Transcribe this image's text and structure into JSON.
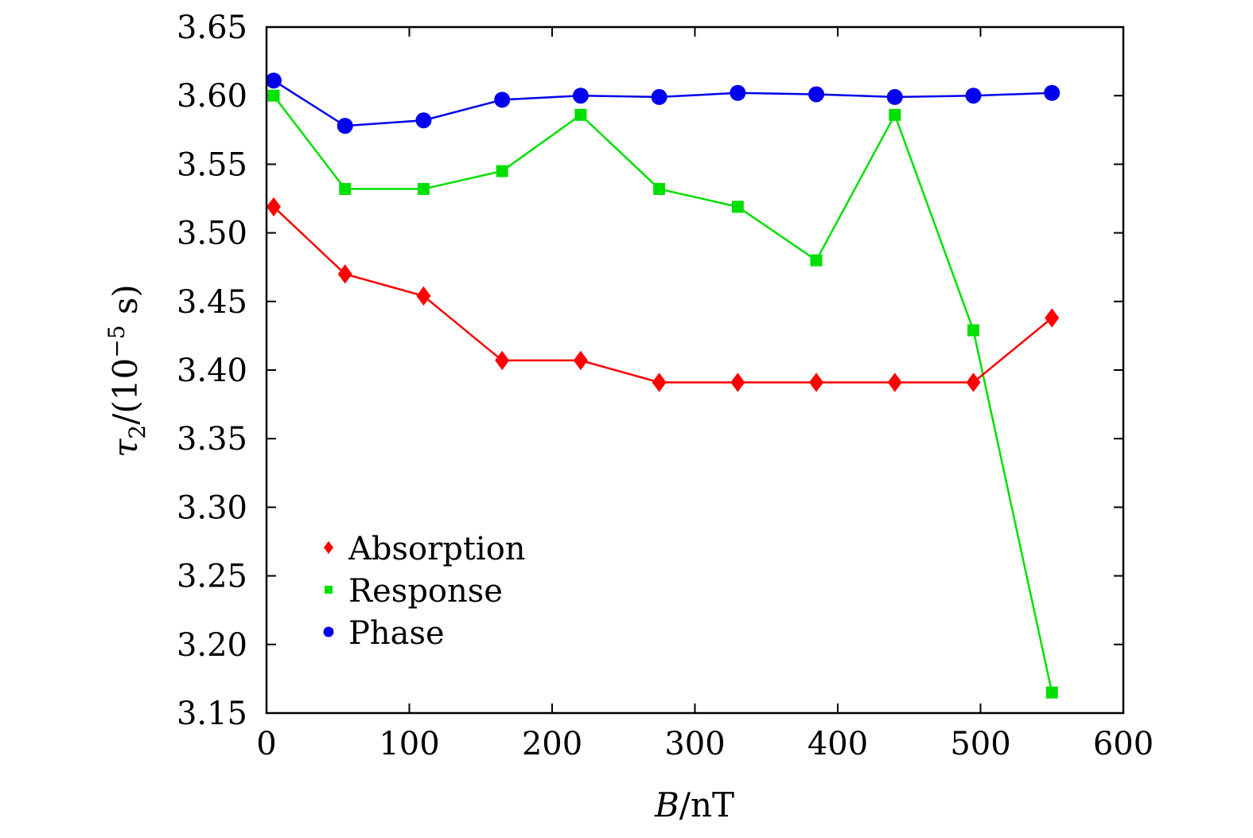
{
  "chart_data": {
    "type": "line",
    "title": "",
    "xlabel_var": "B",
    "xlabel_unit": "/nT",
    "ylabel_var": "τ",
    "ylabel_sub": "2",
    "ylabel_unit": "/(10",
    "ylabel_exp": "−5",
    "ylabel_tail": " s)",
    "xlim": [
      0,
      600
    ],
    "ylim": [
      3.15,
      3.65
    ],
    "xticks": [
      0,
      100,
      200,
      300,
      400,
      500,
      600
    ],
    "xtick_labels": [
      "0",
      "100",
      "200",
      "300",
      "400",
      "500",
      "600"
    ],
    "yticks": [
      3.15,
      3.2,
      3.25,
      3.3,
      3.35,
      3.4,
      3.45,
      3.5,
      3.55,
      3.6,
      3.65
    ],
    "ytick_labels": [
      "3.15",
      "3.20",
      "3.25",
      "3.30",
      "3.35",
      "3.40",
      "3.45",
      "3.50",
      "3.55",
      "3.60",
      "3.65"
    ],
    "legend_position": "lower-left",
    "x": [
      5,
      55,
      110,
      165,
      220,
      275,
      330,
      385,
      440,
      495,
      550
    ],
    "series": [
      {
        "name": "Absorption",
        "color": "#ff0000",
        "marker": "diamond",
        "values": [
          3.519,
          3.47,
          3.454,
          3.407,
          3.407,
          3.391,
          3.391,
          3.391,
          3.391,
          3.391,
          3.438
        ]
      },
      {
        "name": "Response",
        "color": "#00e000",
        "marker": "square",
        "values": [
          3.6,
          3.532,
          3.532,
          3.545,
          3.586,
          3.532,
          3.519,
          3.48,
          3.586,
          3.429,
          3.165
        ]
      },
      {
        "name": "Phase",
        "color": "#0000ee",
        "marker": "circle",
        "values": [
          3.611,
          3.578,
          3.582,
          3.597,
          3.6,
          3.599,
          3.602,
          3.601,
          3.599,
          3.6,
          3.602
        ]
      }
    ]
  }
}
